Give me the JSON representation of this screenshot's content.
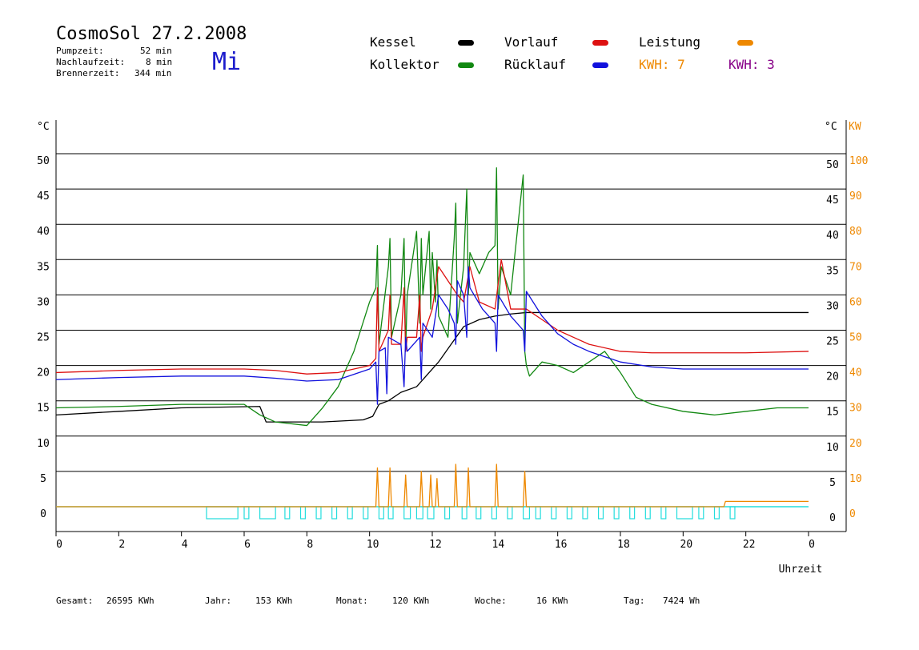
{
  "header": {
    "title": "CosmoSol 27.2.2008",
    "weekday": "Mi",
    "pump_label": "Pumpzeit:",
    "pump_value": "52 min",
    "nachlauf_label": "Nachlaufzeit:",
    "nachlauf_value": "8 min",
    "brenner_label": "Brennerzeit:",
    "brenner_value": "344 min"
  },
  "legend": {
    "kessel": "Kessel",
    "kollektor": "Kollektor",
    "vorlauf": "Vorlauf",
    "ruecklauf": "Rücklauf",
    "leistung": "Leistung",
    "kwh1": "KWH: 7",
    "kwh2": "KWH: 3"
  },
  "colors": {
    "kessel": "#000000",
    "kollektor": "#118811",
    "vorlauf": "#dd1111",
    "ruecklauf": "#1111dd",
    "leistung": "#ee8800",
    "kwh2": "#880088",
    "pump": "#22dddd",
    "day": "#1c1ccc"
  },
  "footer": {
    "gesamt_label": "Gesamt:",
    "gesamt_value": "26595 KWh",
    "jahr_label": "Jahr:",
    "jahr_value": "153 KWh",
    "monat_label": "Monat:",
    "monat_value": "120 KWh",
    "woche_label": "Woche:",
    "woche_value": "16 KWh",
    "tag_label": "Tag:",
    "tag_value": "7424 Wh"
  },
  "chart_data": {
    "type": "line",
    "xlabel": "Uhrzeit",
    "ylabel_left": "°C",
    "ylabel_right": "°C",
    "ylabel_right2": "KW",
    "xlim": [
      0,
      24
    ],
    "ylim": [
      0,
      50
    ],
    "ylim_kw": [
      0,
      100
    ],
    "x_ticks": [
      "0",
      "2",
      "4",
      "6",
      "8",
      "10",
      "12",
      "14",
      "16",
      "18",
      "20",
      "22",
      "0"
    ],
    "y_ticks": [
      "0",
      "5",
      "10",
      "15",
      "20",
      "25",
      "30",
      "35",
      "40",
      "45",
      "50"
    ],
    "kw_ticks": [
      "0",
      "10",
      "20",
      "30",
      "40",
      "50",
      "60",
      "70",
      "80",
      "90",
      "100"
    ],
    "grid": true,
    "series": [
      {
        "name": "Kessel",
        "key": "kessel",
        "x": [
          0,
          2,
          4,
          6.5,
          6.7,
          8.5,
          9.8,
          10.1,
          10.3,
          10.6,
          11,
          11.5,
          11.8,
          12.2,
          12.6,
          13,
          13.5,
          14,
          14.5,
          15,
          15.5,
          24
        ],
        "y": [
          13.0,
          13.5,
          14.0,
          14.2,
          12.0,
          12.0,
          12.3,
          12.8,
          14.5,
          15.0,
          16.2,
          17.0,
          18.5,
          20.5,
          23.0,
          25.5,
          26.5,
          27.0,
          27.3,
          27.5,
          27.5,
          27.5
        ]
      },
      {
        "name": "Kollektor",
        "key": "kollektor",
        "x": [
          0,
          2,
          4,
          6,
          6.5,
          7,
          8,
          8.5,
          9,
          9.5,
          10,
          10.2,
          10.25,
          10.3,
          10.6,
          10.65,
          10.7,
          11,
          11.1,
          11.15,
          11.2,
          11.5,
          11.6,
          11.65,
          11.7,
          11.9,
          11.95,
          12.0,
          12.1,
          12.15,
          12.2,
          12.5,
          12.7,
          12.75,
          12.8,
          13.0,
          13.1,
          13.15,
          13.2,
          13.5,
          13.8,
          14.0,
          14.05,
          14.1,
          14.2,
          14.5,
          14.9,
          14.95,
          15.0,
          15.1,
          15.5,
          16,
          16.5,
          17,
          17.5,
          18,
          18.5,
          19,
          20,
          21,
          22,
          23,
          24
        ],
        "y": [
          14.0,
          14.2,
          14.5,
          14.5,
          13.0,
          12.0,
          11.5,
          14.0,
          17.0,
          22.0,
          29.0,
          31.0,
          37.0,
          23.0,
          34.0,
          38.0,
          24.0,
          30.0,
          38.0,
          22.0,
          30.0,
          39.0,
          26.0,
          38.0,
          30.0,
          39.0,
          28.0,
          36.0,
          29.0,
          35.0,
          27.0,
          24.0,
          38.0,
          43.0,
          26.0,
          34.0,
          45.0,
          30.0,
          36.0,
          33.0,
          36.0,
          37.0,
          48.0,
          28.0,
          34.0,
          30.0,
          47.0,
          22.0,
          20.0,
          18.5,
          20.5,
          20.0,
          19.0,
          20.5,
          22.0,
          19.0,
          15.5,
          14.5,
          13.5,
          13.0,
          13.5,
          14.0,
          14.0
        ]
      },
      {
        "name": "Vorlauf",
        "key": "vorlauf",
        "x": [
          0,
          2,
          4,
          6,
          7,
          8,
          9,
          10,
          10.2,
          10.25,
          10.3,
          10.6,
          10.65,
          10.7,
          11,
          11.1,
          11.15,
          11.2,
          11.5,
          11.6,
          11.65,
          11.7,
          12,
          12.2,
          12.5,
          12.8,
          13,
          13.2,
          13.5,
          14,
          14.2,
          14.5,
          15,
          15.5,
          16,
          16.5,
          17,
          18,
          19,
          20,
          21,
          22,
          24
        ],
        "y": [
          19.0,
          19.3,
          19.5,
          19.5,
          19.3,
          18.8,
          19.0,
          20.0,
          21.0,
          31.0,
          22.0,
          25.0,
          30.0,
          23.0,
          23.0,
          31.0,
          22.0,
          24.0,
          24.0,
          30.0,
          22.0,
          24.0,
          28.0,
          34.0,
          32.0,
          30.0,
          29.0,
          34.0,
          29.0,
          28.0,
          35.0,
          28.0,
          28.0,
          26.5,
          25.0,
          24.0,
          23.0,
          22.0,
          21.8,
          21.8,
          21.8,
          21.8,
          22.0
        ]
      },
      {
        "name": "Rücklauf",
        "key": "ruecklauf",
        "x": [
          0,
          2,
          4,
          6,
          7,
          8,
          9,
          10,
          10.2,
          10.25,
          10.3,
          10.5,
          10.55,
          10.6,
          11,
          11.1,
          11.15,
          11.2,
          11.6,
          11.65,
          11.7,
          12,
          12.2,
          12.5,
          12.7,
          12.75,
          12.8,
          13.0,
          13.1,
          13.15,
          13.2,
          13.6,
          14.0,
          14.05,
          14.1,
          14.5,
          14.9,
          14.95,
          15.0,
          15.5,
          16,
          16.5,
          17,
          18,
          19,
          20,
          21,
          22,
          24
        ],
        "y": [
          18.0,
          18.3,
          18.5,
          18.5,
          18.2,
          17.8,
          18.0,
          19.5,
          20.5,
          14.5,
          22.0,
          22.5,
          16.0,
          24.0,
          23.0,
          17.0,
          24.0,
          22.0,
          24.0,
          18.0,
          26.0,
          24.0,
          30.0,
          28.0,
          26.0,
          23.0,
          32.0,
          30.0,
          24.0,
          34.0,
          31.0,
          28.0,
          26.0,
          22.0,
          30.0,
          27.0,
          25.0,
          22.0,
          30.5,
          27.0,
          24.5,
          23.0,
          22.0,
          20.5,
          19.8,
          19.5,
          19.5,
          19.5,
          19.5
        ]
      },
      {
        "name": "Leistung",
        "key": "leistung",
        "x": [
          0,
          10.2,
          10.25,
          10.3,
          10.6,
          10.65,
          10.7,
          11.1,
          11.15,
          11.2,
          11.6,
          11.65,
          11.7,
          11.9,
          11.95,
          12.0,
          12.1,
          12.15,
          12.2,
          12.7,
          12.75,
          12.8,
          13.1,
          13.15,
          13.2,
          14.0,
          14.05,
          14.1,
          14.9,
          14.95,
          15.0,
          21.3,
          21.35,
          24
        ],
        "y": [
          0,
          0,
          11,
          0,
          0,
          11,
          0,
          0,
          9,
          0,
          0,
          10,
          0,
          0,
          9,
          0,
          0,
          8,
          0,
          0,
          12,
          0,
          0,
          11,
          0,
          0,
          12,
          0,
          0,
          10,
          0,
          0,
          1.5,
          1.5
        ]
      }
    ],
    "pump_segments": [
      [
        4.8,
        5.8
      ],
      [
        6.0,
        6.15
      ],
      [
        6.5,
        7.0
      ],
      [
        7.3,
        7.45
      ],
      [
        7.8,
        7.95
      ],
      [
        8.3,
        8.45
      ],
      [
        8.8,
        8.95
      ],
      [
        9.3,
        9.45
      ],
      [
        9.8,
        9.95
      ],
      [
        10.3,
        10.45
      ],
      [
        10.6,
        10.75
      ],
      [
        11.1,
        11.3
      ],
      [
        11.5,
        11.7
      ],
      [
        11.85,
        12.05
      ],
      [
        12.4,
        12.55
      ],
      [
        12.95,
        13.1
      ],
      [
        13.4,
        13.55
      ],
      [
        13.9,
        14.05
      ],
      [
        14.4,
        14.55
      ],
      [
        14.9,
        15.1
      ],
      [
        15.3,
        15.45
      ],
      [
        15.8,
        15.95
      ],
      [
        16.3,
        16.45
      ],
      [
        16.8,
        16.95
      ],
      [
        17.3,
        17.45
      ],
      [
        17.8,
        17.95
      ],
      [
        18.3,
        18.45
      ],
      [
        18.8,
        18.95
      ],
      [
        19.3,
        19.45
      ],
      [
        19.8,
        20.3
      ],
      [
        20.5,
        20.65
      ],
      [
        21.0,
        21.15
      ],
      [
        21.5,
        21.65
      ]
    ]
  }
}
